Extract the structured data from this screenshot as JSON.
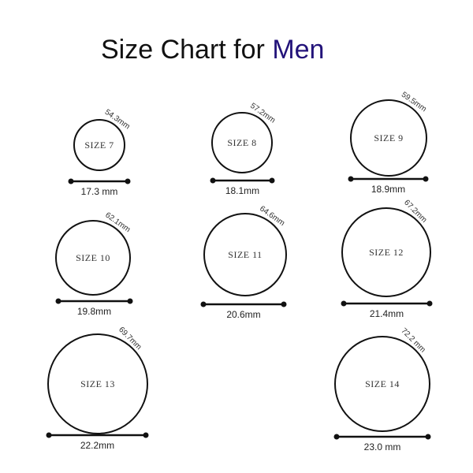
{
  "title": {
    "text": "Size Chart for ",
    "accent": "Men",
    "accent_color": "#23137a"
  },
  "rings": [
    {
      "size_label": "SIZE 7",
      "circumference": "54.3mm",
      "diameter": "17.3 mm"
    },
    {
      "size_label": "SIZE 8",
      "circumference": "57.2mm",
      "diameter": "18.1mm"
    },
    {
      "size_label": "SIZE 9",
      "circumference": "59.5mm",
      "diameter": "18.9mm"
    },
    {
      "size_label": "SIZE 10",
      "circumference": "62.1mm",
      "diameter": "19.8mm"
    },
    {
      "size_label": "SIZE 11",
      "circumference": "64.6mm",
      "diameter": "20.6mm"
    },
    {
      "size_label": "SIZE 12",
      "circumference": "67.2mm",
      "diameter": "21.4mm"
    },
    {
      "size_label": "SIZE 13",
      "circumference": "69.7mm",
      "diameter": "22.2mm"
    },
    {
      "size_label": "SIZE 14",
      "circumference": "72.2 mm",
      "diameter": "23.0 mm"
    }
  ]
}
